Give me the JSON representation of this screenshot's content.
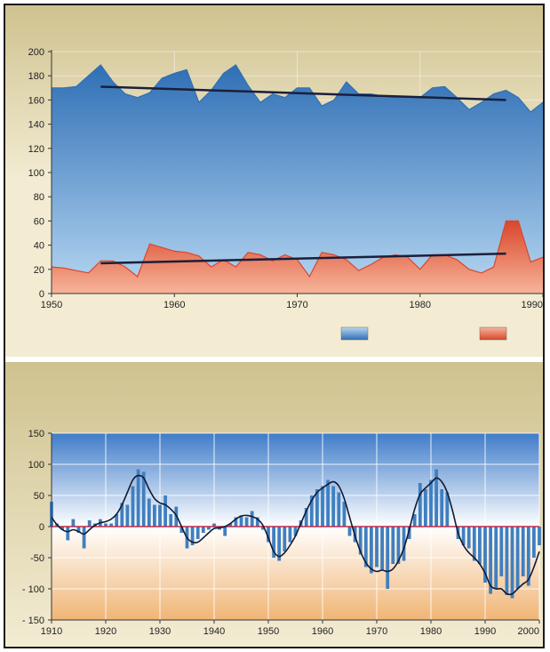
{
  "colors": {
    "beige_light": "#f3ecd3",
    "beige_dark": "#cfc28f",
    "blue_top": "#2f6fb5",
    "blue_bottom": "#b7d7f2",
    "red_top": "#d9472b",
    "red_bottom": "#f7b49a",
    "trend": "#1b1f3a",
    "zero_line": "#c0294a",
    "bar_fill": "#3f7fc0",
    "smooth_line": "#111a33",
    "sky_top": "#3f7cc9",
    "sky_bottom": "#ffffff",
    "sand_top": "#ffffff",
    "sand_bottom": "#f0b575"
  },
  "chart_data": [
    {
      "type": "area",
      "title": "",
      "xlabel": "",
      "ylabel": "",
      "xlim": [
        1950,
        1990
      ],
      "ylim": [
        0,
        200
      ],
      "xticks": [
        1950,
        1960,
        1970,
        1980,
        1990
      ],
      "xtick_labels": [
        "1950",
        "1960",
        "1970",
        "1980",
        "1990"
      ],
      "yticks": [
        0,
        20,
        40,
        60,
        80,
        100,
        120,
        140,
        160,
        180,
        200
      ],
      "ytick_labels": [
        "0",
        "20",
        "40",
        "60",
        "80",
        "100",
        "120",
        "140",
        "160",
        "180",
        "200"
      ],
      "grid": true,
      "legend": "bottom-right, color swatches only",
      "series": [
        {
          "color_key": "blue",
          "x": [
            1950,
            1951,
            1952,
            1953,
            1954,
            1955,
            1956,
            1957,
            1958,
            1959,
            1960,
            1961,
            1962,
            1963,
            1964,
            1965,
            1966,
            1967,
            1968,
            1969,
            1970,
            1971,
            1972,
            1973,
            1974,
            1975,
            1976,
            1977,
            1978,
            1979,
            1980,
            1981,
            1982,
            1983,
            1984,
            1985,
            1986,
            1987,
            1988,
            1989,
            1990
          ],
          "values": [
            170,
            170,
            171,
            180,
            189,
            175,
            165,
            162,
            166,
            178,
            182,
            185,
            158,
            168,
            182,
            189,
            172,
            158,
            165,
            162,
            170,
            170,
            155,
            160,
            175,
            165,
            165,
            163,
            162,
            163,
            162,
            170,
            171,
            162,
            152,
            158,
            165,
            168,
            162,
            150,
            158
          ],
          "trend": [
            [
              1954,
              171
            ],
            [
              1987,
              160
            ]
          ]
        },
        {
          "color_key": "red",
          "x": [
            1950,
            1951,
            1952,
            1953,
            1954,
            1955,
            1956,
            1957,
            1958,
            1959,
            1960,
            1961,
            1962,
            1963,
            1964,
            1965,
            1966,
            1967,
            1968,
            1969,
            1970,
            1971,
            1972,
            1973,
            1974,
            1975,
            1976,
            1977,
            1978,
            1979,
            1980,
            1981,
            1982,
            1983,
            1984,
            1985,
            1986,
            1987,
            1988,
            1989,
            1990
          ],
          "values": [
            22,
            21,
            19,
            17,
            27,
            27,
            22,
            14,
            41,
            38,
            35,
            34,
            31,
            22,
            28,
            22,
            34,
            32,
            27,
            32,
            28,
            14,
            34,
            32,
            28,
            19,
            24,
            30,
            32,
            30,
            20,
            32,
            32,
            28,
            20,
            17,
            22,
            60,
            60,
            26,
            30
          ],
          "trend": [
            [
              1954,
              25
            ],
            [
              1987,
              33
            ]
          ]
        }
      ]
    },
    {
      "type": "bar",
      "title": "",
      "xlabel": "",
      "ylabel": "",
      "xlim": [
        1910,
        2000
      ],
      "ylim": [
        -150,
        150
      ],
      "xticks": [
        1910,
        1920,
        1930,
        1940,
        1950,
        1960,
        1970,
        1980,
        1990,
        2000
      ],
      "xtick_labels": [
        "1910",
        "1920",
        "1930",
        "1940",
        "1950",
        "1960",
        "1970",
        "1980",
        "1990",
        "2000"
      ],
      "yticks": [
        -150,
        -100,
        -50,
        0,
        50,
        100,
        150
      ],
      "ytick_labels": [
        "- 150",
        "- 100",
        "-50",
        "0",
        "50",
        "100",
        "150"
      ],
      "grid": true,
      "x": [
        1910,
        1911,
        1912,
        1913,
        1914,
        1915,
        1916,
        1917,
        1918,
        1919,
        1920,
        1921,
        1922,
        1923,
        1924,
        1925,
        1926,
        1927,
        1928,
        1929,
        1930,
        1931,
        1932,
        1933,
        1934,
        1935,
        1936,
        1937,
        1938,
        1939,
        1940,
        1941,
        1942,
        1943,
        1944,
        1945,
        1946,
        1947,
        1948,
        1949,
        1950,
        1951,
        1952,
        1953,
        1954,
        1955,
        1956,
        1957,
        1958,
        1959,
        1960,
        1961,
        1962,
        1963,
        1964,
        1965,
        1966,
        1967,
        1968,
        1969,
        1970,
        1971,
        1972,
        1973,
        1974,
        1975,
        1976,
        1977,
        1978,
        1979,
        1980,
        1981,
        1982,
        1983,
        1984,
        1985,
        1986,
        1987,
        1988,
        1989,
        1990,
        1991,
        1992,
        1993,
        1994,
        1995,
        1996,
        1997,
        1998,
        1999,
        2000
      ],
      "values": [
        40,
        5,
        -5,
        -22,
        12,
        -10,
        -35,
        10,
        5,
        12,
        5,
        5,
        20,
        38,
        35,
        65,
        92,
        88,
        45,
        35,
        35,
        50,
        20,
        32,
        -10,
        -35,
        -30,
        -20,
        -10,
        -5,
        5,
        -5,
        -15,
        5,
        15,
        18,
        15,
        25,
        15,
        -5,
        -25,
        -50,
        -55,
        -40,
        -25,
        -15,
        10,
        30,
        50,
        60,
        65,
        75,
        65,
        55,
        40,
        -15,
        -25,
        -45,
        -65,
        -75,
        -65,
        -70,
        -100,
        -60,
        -60,
        -55,
        -20,
        20,
        70,
        60,
        75,
        92,
        60,
        55,
        0,
        -20,
        -30,
        -35,
        -55,
        -60,
        -90,
        -108,
        -100,
        -80,
        -110,
        -115,
        -100,
        -80,
        -95,
        -50,
        -30
      ],
      "smooth": [
        15,
        3,
        -5,
        -8,
        -5,
        -8,
        -12,
        -5,
        2,
        6,
        8,
        12,
        20,
        35,
        55,
        75,
        82,
        78,
        60,
        45,
        38,
        35,
        28,
        18,
        0,
        -18,
        -25,
        -25,
        -18,
        -10,
        -3,
        -2,
        0,
        5,
        12,
        17,
        18,
        16,
        12,
        2,
        -18,
        -40,
        -48,
        -42,
        -30,
        -15,
        5,
        25,
        42,
        55,
        62,
        68,
        72,
        65,
        45,
        15,
        -15,
        -40,
        -58,
        -68,
        -72,
        -70,
        -72,
        -68,
        -55,
        -35,
        -5,
        28,
        52,
        62,
        70,
        78,
        72,
        55,
        25,
        -10,
        -30,
        -42,
        -50,
        -60,
        -75,
        -95,
        -100,
        -100,
        -108,
        -108,
        -100,
        -92,
        -85,
        -65,
        -40
      ]
    }
  ]
}
